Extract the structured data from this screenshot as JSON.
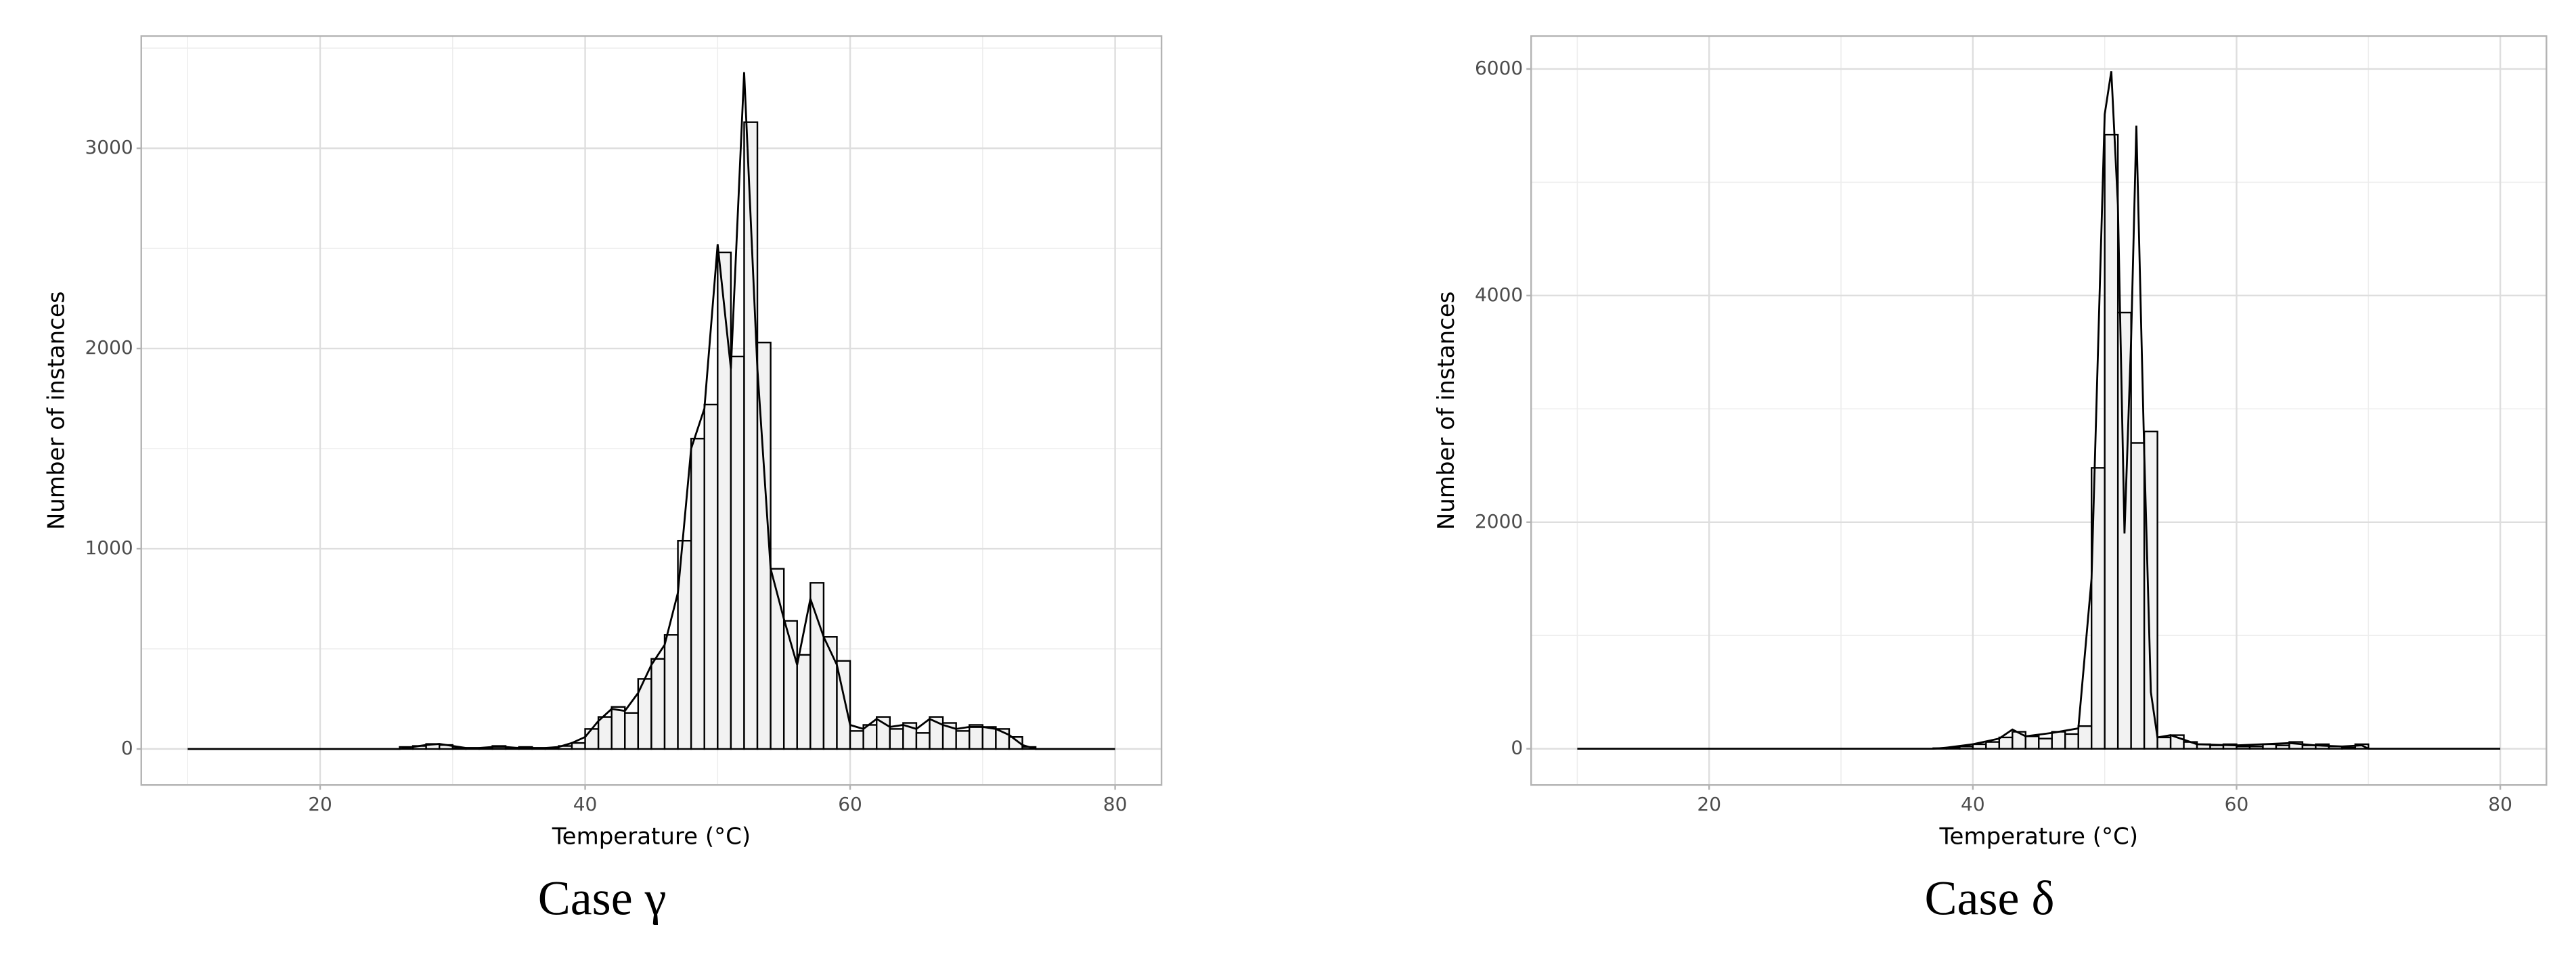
{
  "chart_data": [
    {
      "type": "histogram",
      "caption": "Case γ",
      "xlabel": "Temperature (°C)",
      "ylabel": "Number of instances",
      "bins": [
        26,
        27,
        28,
        29,
        30,
        31,
        32,
        33,
        34,
        35,
        36,
        37,
        38,
        39,
        40,
        41,
        42,
        43,
        44,
        45,
        46,
        47,
        48,
        49,
        50,
        51,
        52,
        53,
        54,
        55,
        56,
        57,
        58,
        59,
        60,
        61,
        62,
        63,
        64,
        65,
        66,
        67,
        68,
        69,
        70,
        71,
        72,
        73,
        74
      ],
      "counts": [
        10,
        15,
        25,
        20,
        5,
        5,
        5,
        15,
        5,
        10,
        5,
        5,
        15,
        30,
        100,
        160,
        210,
        180,
        350,
        450,
        570,
        1040,
        1550,
        1720,
        2480,
        1960,
        3130,
        2030,
        900,
        640,
        470,
        830,
        560,
        440,
        90,
        120,
        160,
        100,
        130,
        80,
        160,
        130,
        90,
        120,
        110,
        100,
        60,
        10
      ],
      "line": {
        "x": [
          10,
          26,
          27,
          28,
          29,
          30,
          31,
          32,
          33,
          34,
          35,
          36,
          37,
          38,
          39,
          40,
          41,
          42,
          43,
          44,
          45,
          46,
          47,
          48,
          49,
          50,
          51,
          52,
          53,
          54,
          55,
          56,
          57,
          58,
          59,
          60,
          61,
          62,
          63,
          64,
          65,
          66,
          67,
          68,
          69,
          70,
          71,
          72,
          73,
          74,
          80
        ],
        "values": [
          0,
          0,
          10,
          20,
          25,
          15,
          5,
          5,
          10,
          10,
          5,
          5,
          5,
          10,
          30,
          60,
          140,
          200,
          190,
          280,
          420,
          520,
          780,
          1500,
          1700,
          2520,
          1900,
          3380,
          1900,
          900,
          650,
          420,
          750,
          560,
          420,
          120,
          100,
          150,
          110,
          120,
          100,
          150,
          120,
          100,
          110,
          110,
          100,
          70,
          20,
          0,
          0
        ]
      },
      "color": "#f2f2f2",
      "edgecolor": "#000000",
      "xlim": [
        6.5,
        83.5
      ],
      "ylim": [
        -180,
        3560
      ],
      "xticks": [
        20,
        40,
        60,
        80
      ],
      "yticks": [
        0,
        1000,
        2000,
        3000
      ],
      "grid": true
    },
    {
      "type": "histogram",
      "caption": "Case δ",
      "xlabel": "Temperature (°C)",
      "ylabel": "Number of instances",
      "bins": [
        37,
        38,
        39,
        40,
        41,
        42,
        43,
        44,
        45,
        46,
        47,
        48,
        49,
        50,
        51,
        52,
        53,
        54,
        55,
        56,
        57,
        58,
        59,
        60,
        61,
        62,
        63,
        64,
        65,
        66,
        67,
        68,
        69,
        70
      ],
      "counts": [
        5,
        10,
        20,
        40,
        60,
        100,
        150,
        110,
        90,
        150,
        130,
        200,
        2480,
        5420,
        3850,
        2700,
        2800,
        100,
        120,
        60,
        40,
        30,
        40,
        20,
        20,
        40,
        30,
        60,
        30,
        40,
        20,
        10,
        40
      ],
      "line": {
        "x": [
          10,
          37,
          38,
          40,
          42,
          43,
          44,
          46,
          48,
          49,
          50,
          50.5,
          51,
          51.5,
          52,
          52.4,
          53,
          53.5,
          54,
          55,
          57,
          60,
          62,
          64,
          66,
          68,
          69.5,
          70,
          80
        ],
        "values": [
          0,
          0,
          10,
          40,
          90,
          170,
          110,
          140,
          180,
          1500,
          5600,
          5980,
          4800,
          1900,
          3600,
          5500,
          2600,
          500,
          100,
          120,
          40,
          30,
          40,
          50,
          30,
          20,
          30,
          0,
          0
        ]
      },
      "color": "#f2f2f2",
      "edgecolor": "#000000",
      "xlim": [
        6.5,
        83.5
      ],
      "ylim": [
        -320,
        6290
      ],
      "xticks": [
        20,
        40,
        60,
        80
      ],
      "yticks": [
        0,
        2000,
        4000,
        6000
      ],
      "grid": true
    }
  ]
}
